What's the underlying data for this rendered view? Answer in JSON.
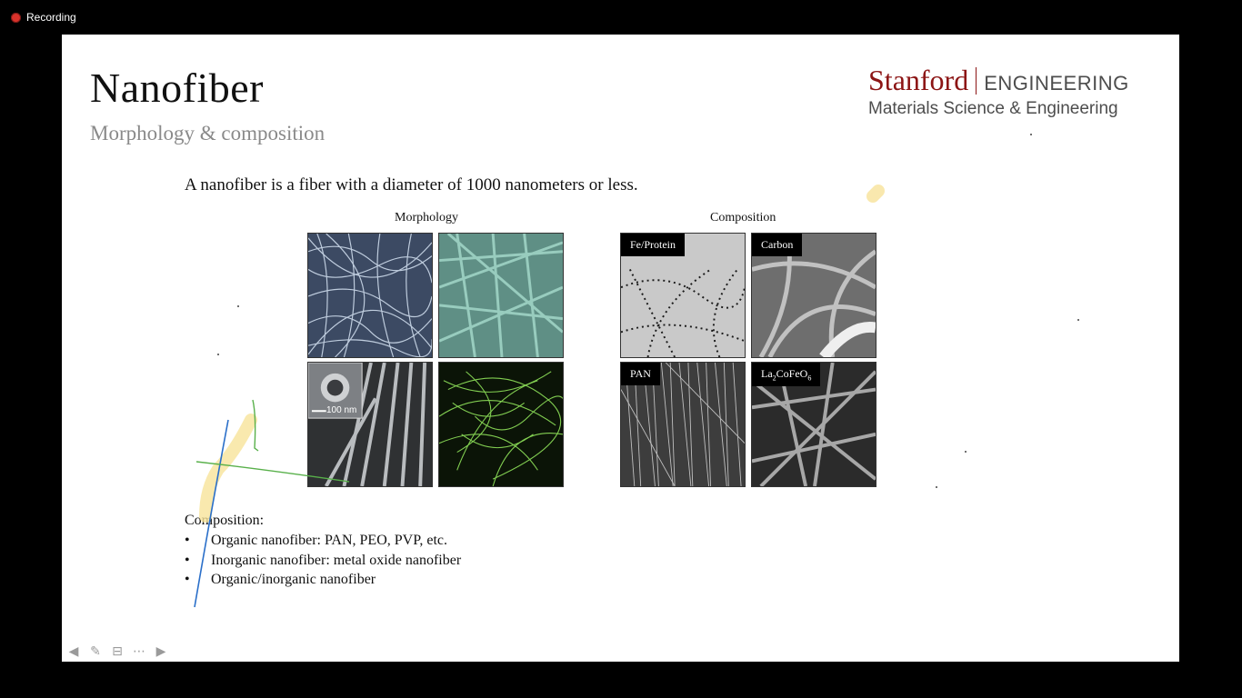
{
  "recording": {
    "label": "Recording"
  },
  "slide": {
    "title": "Nanofiber",
    "subtitle": "Morphology & composition",
    "logo": {
      "stanford": "Stanford",
      "engineering": "ENGINEERING",
      "department": "Materials Science & Engineering"
    },
    "intro": "A nanofiber is a fiber with a diameter of 1000 nanometers or less.",
    "morphology_heading": "Morphology",
    "composition_heading": "Composition",
    "composition_tags": [
      "Fe/Protein",
      "Carbon",
      "PAN"
    ],
    "tag_lacofeo": {
      "prefix": "La",
      "sub1": "2",
      "mid": "CoFeO",
      "sub2": "6"
    },
    "scale_label": "100 nm",
    "composition_label": "Composition:",
    "bullets": [
      "Organic nanofiber: PAN, PEO, PVP, etc.",
      "Inorganic nanofiber: metal oxide nanofiber",
      "Organic/inorganic nanofiber"
    ]
  },
  "nav": {
    "icons": [
      "arrow-left-icon",
      "pen-icon",
      "subtitles-icon",
      "more-icon",
      "arrow-right-icon"
    ]
  },
  "colors": {
    "title": "#111111",
    "subtitle": "#8a8a8a",
    "stanford_red": "#8c1515",
    "annotation_blue": "#2a6fc9",
    "annotation_green": "#58b04a",
    "highlight_yellow": "#f5d76e"
  }
}
